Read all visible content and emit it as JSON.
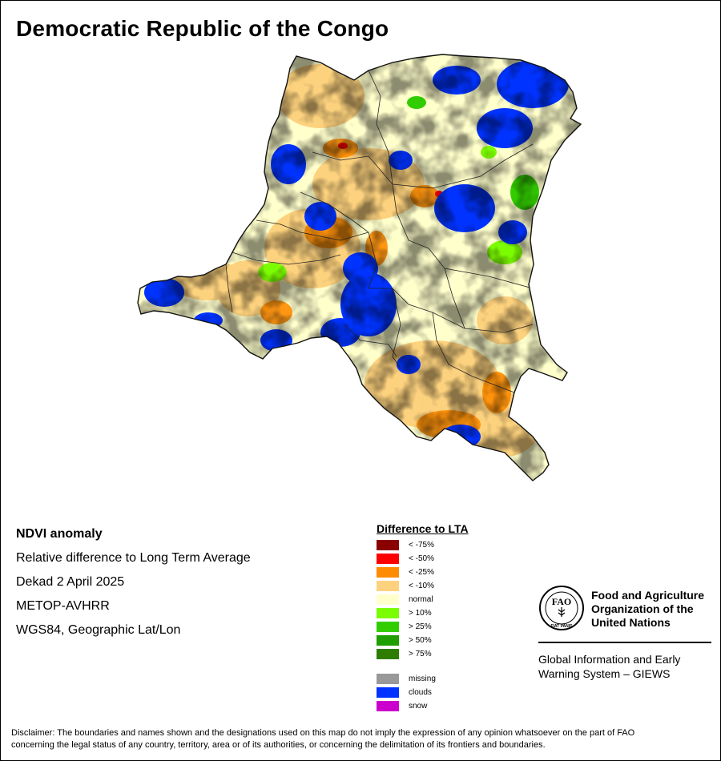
{
  "title": "Democratic Republic of the Congo",
  "info": {
    "lines": [
      "NDVI anomaly",
      "Relative difference to Long Term Average",
      "Dekad 2 April 2025",
      "METOP-AVHRR",
      "WGS84, Geographic Lat/Lon"
    ]
  },
  "legend": {
    "title": "Difference to LTA",
    "classes": [
      {
        "label": "< -75%",
        "color": "#8b0000"
      },
      {
        "label": "< -50%",
        "color": "#ff0000"
      },
      {
        "label": "< -25%",
        "color": "#ff8c00"
      },
      {
        "label": "< -10%",
        "color": "#fdd27e"
      },
      {
        "label": "normal",
        "color": "#ffffcc"
      },
      {
        "label": "> 10%",
        "color": "#7cfc00"
      },
      {
        "label": "> 25%",
        "color": "#32cd00"
      },
      {
        "label": "> 50%",
        "color": "#1f9e00"
      },
      {
        "label": "> 75%",
        "color": "#2e7d00"
      }
    ],
    "extra": [
      {
        "label": "missing",
        "color": "#999999"
      },
      {
        "label": "clouds",
        "color": "#0033ff"
      },
      {
        "label": "snow",
        "color": "#cc00cc"
      }
    ]
  },
  "logo": {
    "emblem_text": "FIAT PANIS",
    "org_name": [
      "Food and Agriculture",
      "Organization of the",
      "United Nations"
    ],
    "system": [
      "Global Information and Early",
      "Warning System – GIEWS"
    ]
  },
  "disclaimer": [
    "Disclaimer: The boundaries and names shown and the designations used on this map do not imply the expression of any opinion whatsoever on the part of FAO",
    "concerning the legal status of any country, territory, area or of its authorities, or concerning the delimitation of its frontiers and boundaries."
  ]
}
